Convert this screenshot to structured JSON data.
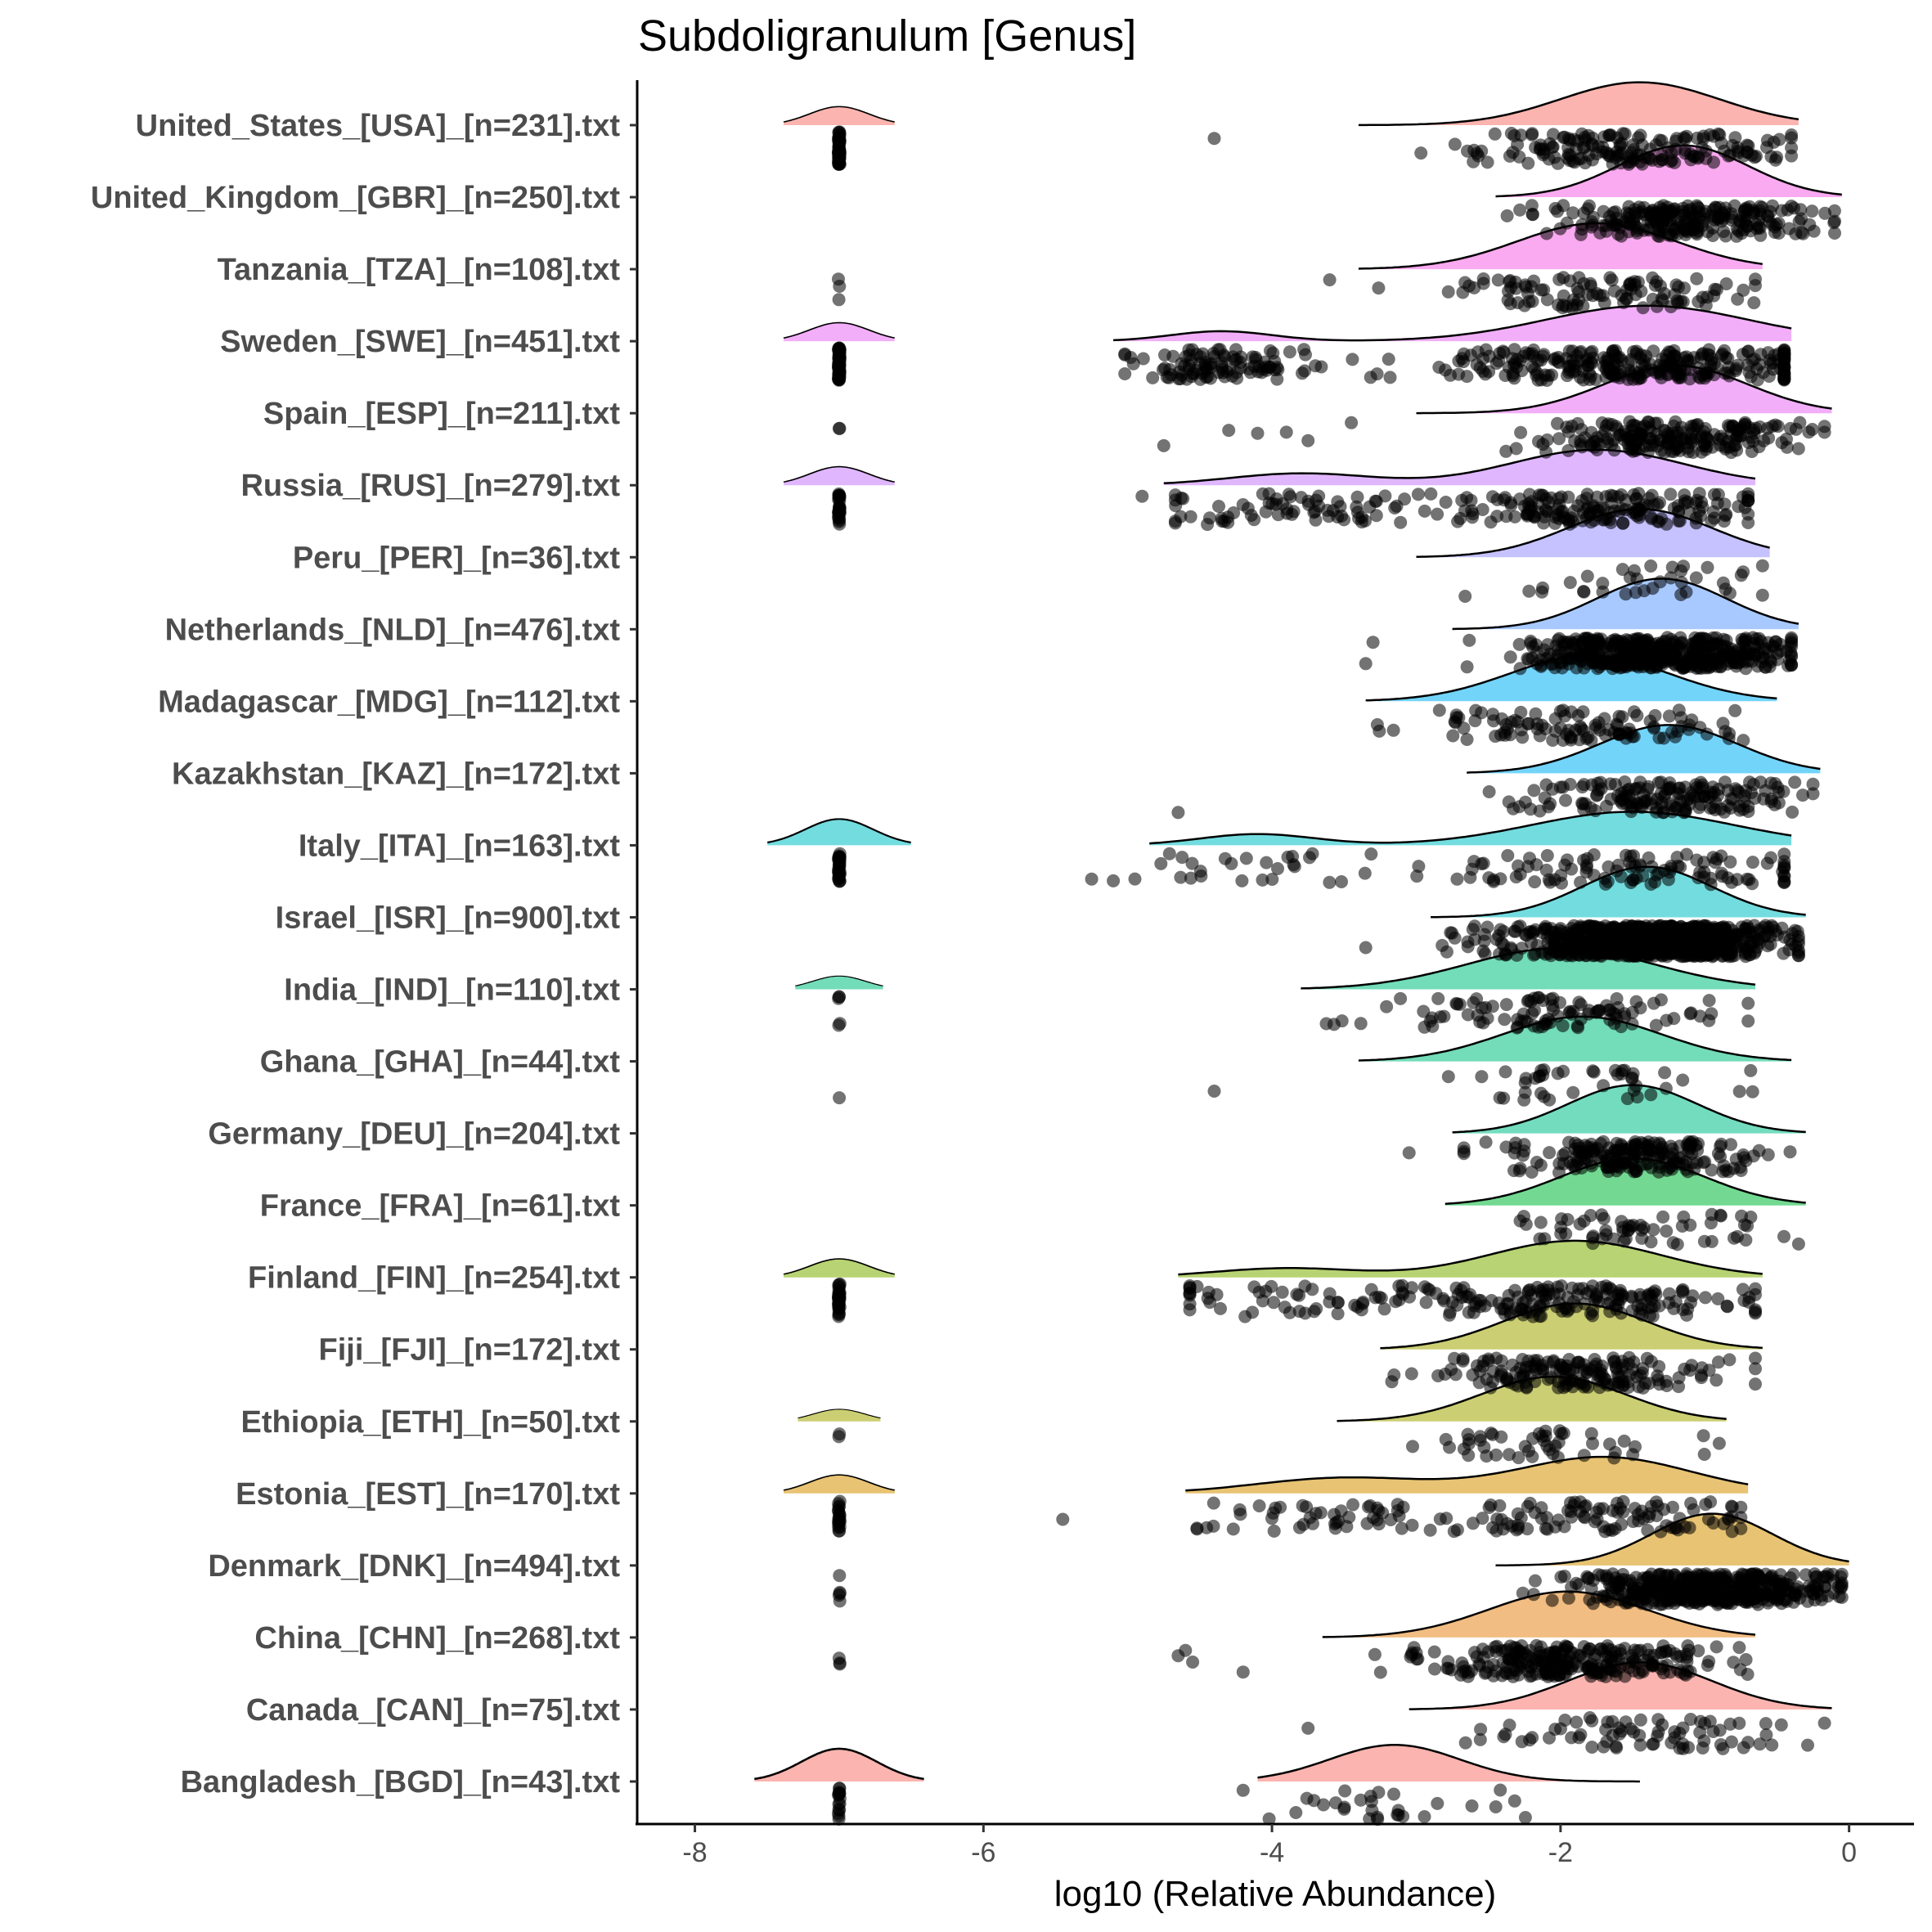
{
  "chart_data": {
    "type": "raincloud",
    "title": "Subdoligranulum [Genus]",
    "xlabel": "log10 (Relative Abundance)",
    "ylabel": "",
    "xlim": [
      -8.4,
      0.45
    ],
    "xticks": [
      -8,
      -6,
      -4,
      -2,
      0
    ],
    "xtick_labels": [
      "-8",
      "-6",
      "-4",
      "-2",
      "0"
    ],
    "grid": false,
    "legend": "none",
    "zero_value": -7,
    "series": [
      {
        "name": "United_States_[USA]_[n=231].txt",
        "color": "#F8766D",
        "n": 231,
        "zero_frac": 0.25,
        "zero_density": 0.3,
        "range": [
          -3.4,
          -0.35
        ],
        "components": [
          {
            "mu": -1.45,
            "sd": 0.55,
            "w": 1.0
          }
        ],
        "outliers": [
          -4.4
        ],
        "peak": 0.62
      },
      {
        "name": "United_Kingdom_[GBR]_[n=250].txt",
        "color": "#F564E3",
        "n": 250,
        "zero_frac": 0.0,
        "zero_density": 0,
        "range": [
          -2.45,
          -0.05
        ],
        "components": [
          {
            "mu": -1.15,
            "sd": 0.45,
            "w": 1.0
          }
        ],
        "outliers": [],
        "peak": 1.0
      },
      {
        "name": "Tanzania_[TZA]_[n=108].txt",
        "color": "#F564E3",
        "n": 108,
        "zero_frac": 0.03,
        "zero_density": 0,
        "range": [
          -3.4,
          -0.6
        ],
        "components": [
          {
            "mu": -1.75,
            "sd": 0.55,
            "w": 1.0
          }
        ],
        "outliers": [
          -3.6
        ],
        "peak": 0.75
      },
      {
        "name": "Sweden_[SWE]_[n=451].txt",
        "color": "#E76BF3",
        "n": 451,
        "zero_frac": 0.12,
        "zero_density": 0.3,
        "range": [
          -5.1,
          -0.4
        ],
        "components": [
          {
            "mu": -4.35,
            "sd": 0.35,
            "w": 0.22
          },
          {
            "mu": -1.4,
            "sd": 0.7,
            "w": 0.78
          }
        ],
        "outliers": [],
        "peak": 0.3
      },
      {
        "name": "Spain_[ESP]_[n=211].txt",
        "color": "#E76BF3",
        "n": 211,
        "zero_frac": 0.01,
        "zero_density": 0,
        "range": [
          -3.0,
          -0.12
        ],
        "components": [
          {
            "mu": -1.2,
            "sd": 0.5,
            "w": 1.0
          }
        ],
        "outliers": [
          -4.75,
          -4.3,
          -4.1,
          -3.9,
          -3.75,
          -3.45
        ],
        "peak": 0.82
      },
      {
        "name": "Russia_[RUS]_[n=279].txt",
        "color": "#C77CFF",
        "n": 279,
        "zero_frac": 0.1,
        "zero_density": 0.3,
        "range": [
          -4.75,
          -0.65
        ],
        "components": [
          {
            "mu": -3.8,
            "sd": 0.5,
            "w": 0.25
          },
          {
            "mu": -1.75,
            "sd": 0.6,
            "w": 0.75
          }
        ],
        "outliers": [
          -4.9
        ],
        "peak": 0.3
      },
      {
        "name": "Peru_[PER]_[n=36].txt",
        "color": "#9590FF",
        "n": 36,
        "zero_frac": 0.0,
        "zero_density": 0,
        "range": [
          -3.0,
          -0.55
        ],
        "components": [
          {
            "mu": -1.45,
            "sd": 0.5,
            "w": 1.0
          }
        ],
        "outliers": [],
        "peak": 0.85
      },
      {
        "name": "Netherlands_[NLD]_[n=476].txt",
        "color": "#619CFF",
        "n": 476,
        "zero_frac": 0.0,
        "zero_density": 0,
        "range": [
          -2.75,
          -0.35
        ],
        "components": [
          {
            "mu": -1.3,
            "sd": 0.45,
            "w": 1.0
          }
        ],
        "outliers": [
          -3.35,
          -3.3
        ],
        "peak": 0.95
      },
      {
        "name": "Madagascar_[MDG]_[n=112].txt",
        "color": "#00B0F6",
        "n": 112,
        "zero_frac": 0.0,
        "zero_density": 0,
        "range": [
          -3.35,
          -0.5
        ],
        "components": [
          {
            "mu": -1.8,
            "sd": 0.55,
            "w": 1.0
          }
        ],
        "outliers": [],
        "peak": 0.75
      },
      {
        "name": "Kazakhstan_[KAZ]_[n=172].txt",
        "color": "#00B0F6",
        "n": 172,
        "zero_frac": 0.0,
        "zero_density": 0,
        "range": [
          -2.65,
          -0.2
        ],
        "components": [
          {
            "mu": -1.25,
            "sd": 0.48,
            "w": 1.0
          }
        ],
        "outliers": [
          -4.65
        ],
        "peak": 0.85
      },
      {
        "name": "Italy_[ITA]_[n=163].txt",
        "color": "#00BFC4",
        "n": 163,
        "zero_frac": 0.18,
        "zero_density": 0.55,
        "range": [
          -4.85,
          -0.4
        ],
        "components": [
          {
            "mu": -4.1,
            "sd": 0.4,
            "w": 0.25
          },
          {
            "mu": -1.5,
            "sd": 0.7,
            "w": 0.75
          }
        ],
        "outliers": [
          -5.25,
          -5.1,
          -4.95
        ],
        "peak": 0.22
      },
      {
        "name": "Israel_[ISR]_[n=900].txt",
        "color": "#00BFC4",
        "n": 900,
        "zero_frac": 0.0,
        "zero_density": 0,
        "range": [
          -2.9,
          -0.3
        ],
        "components": [
          {
            "mu": -1.4,
            "sd": 0.45,
            "w": 1.0
          }
        ],
        "outliers": [
          -3.35
        ],
        "peak": 0.95
      },
      {
        "name": "India_[IND]_[n=110].txt",
        "color": "#00BF7D",
        "n": 110,
        "zero_frac": 0.05,
        "zero_density": 0.12,
        "range": [
          -3.8,
          -0.65
        ],
        "components": [
          {
            "mu": -2.0,
            "sd": 0.65,
            "w": 1.0
          }
        ],
        "outliers": [],
        "peak": 0.55
      },
      {
        "name": "Ghana_[GHA]_[n=44].txt",
        "color": "#00BF7D",
        "n": 44,
        "zero_frac": 0.03,
        "zero_density": 0,
        "range": [
          -3.4,
          -0.4
        ],
        "components": [
          {
            "mu": -1.85,
            "sd": 0.55,
            "w": 1.0
          }
        ],
        "outliers": [
          -4.4
        ],
        "peak": 0.7
      },
      {
        "name": "Germany_[DEU]_[n=204].txt",
        "color": "#00C08B",
        "n": 204,
        "zero_frac": 0.0,
        "zero_density": 0,
        "range": [
          -2.75,
          -0.3
        ],
        "components": [
          {
            "mu": -1.5,
            "sd": 0.45,
            "w": 1.0
          }
        ],
        "outliers": [
          -3.05
        ],
        "peak": 0.85
      },
      {
        "name": "France_[FRA]_[n=61].txt",
        "color": "#00BA38",
        "n": 61,
        "zero_frac": 0.0,
        "zero_density": 0,
        "range": [
          -2.8,
          -0.3
        ],
        "components": [
          {
            "mu": -1.5,
            "sd": 0.5,
            "w": 1.0
          }
        ],
        "outliers": [],
        "peak": 0.8
      },
      {
        "name": "Finland_[FIN]_[n=254].txt",
        "color": "#7CAE00",
        "n": 254,
        "zero_frac": 0.12,
        "zero_density": 0.3,
        "range": [
          -4.65,
          -0.6
        ],
        "components": [
          {
            "mu": -3.9,
            "sd": 0.5,
            "w": 0.2
          },
          {
            "mu": -1.9,
            "sd": 0.6,
            "w": 0.8
          }
        ],
        "outliers": [],
        "peak": 0.35
      },
      {
        "name": "Fiji_[FJI]_[n=172].txt",
        "color": "#A3A500",
        "n": 172,
        "zero_frac": 0.0,
        "zero_density": 0,
        "range": [
          -3.25,
          -0.6
        ],
        "components": [
          {
            "mu": -1.9,
            "sd": 0.5,
            "w": 1.0
          }
        ],
        "outliers": [],
        "peak": 0.75
      },
      {
        "name": "Ethiopia_[ETH]_[n=50].txt",
        "color": "#A3A500",
        "n": 50,
        "zero_frac": 0.04,
        "zero_density": 0.08,
        "range": [
          -3.55,
          -0.85
        ],
        "components": [
          {
            "mu": -2.05,
            "sd": 0.5,
            "w": 1.0
          }
        ],
        "outliers": [],
        "peak": 0.7
      },
      {
        "name": "Estonia_[EST]_[n=170].txt",
        "color": "#D39200",
        "n": 170,
        "zero_frac": 0.12,
        "zero_density": 0.3,
        "range": [
          -4.6,
          -0.7
        ],
        "components": [
          {
            "mu": -3.5,
            "sd": 0.6,
            "w": 0.3
          },
          {
            "mu": -1.7,
            "sd": 0.6,
            "w": 0.7
          }
        ],
        "outliers": [
          -5.45
        ],
        "peak": 0.35
      },
      {
        "name": "Denmark_[DNK]_[n=494].txt",
        "color": "#D39200",
        "n": 494,
        "zero_frac": 0.01,
        "zero_density": 0,
        "range": [
          -2.45,
          0.0
        ],
        "components": [
          {
            "mu": -0.95,
            "sd": 0.42,
            "w": 1.0
          }
        ],
        "outliers": [],
        "peak": 1.0
      },
      {
        "name": "China_[CHN]_[n=268].txt",
        "color": "#E7861B",
        "n": 268,
        "zero_frac": 0.01,
        "zero_density": 0,
        "range": [
          -3.65,
          -0.65
        ],
        "components": [
          {
            "mu": -1.95,
            "sd": 0.55,
            "w": 1.0
          }
        ],
        "outliers": [
          -4.65,
          -4.6,
          -4.55,
          -4.2
        ],
        "peak": 0.75
      },
      {
        "name": "Canada_[CAN]_[n=75].txt",
        "color": "#F8766D",
        "n": 75,
        "zero_frac": 0.0,
        "zero_density": 0,
        "range": [
          -3.05,
          -0.12
        ],
        "components": [
          {
            "mu": -1.45,
            "sd": 0.5,
            "w": 1.0
          }
        ],
        "outliers": [
          -3.75
        ],
        "peak": 0.8
      },
      {
        "name": "Bangladesh_[BGD]_[n=43].txt",
        "color": "#F8766D",
        "n": 43,
        "zero_frac": 0.35,
        "zero_density": 0.75,
        "range": [
          -4.1,
          -1.45
        ],
        "components": [
          {
            "mu": -3.15,
            "sd": 0.45,
            "w": 1.0
          }
        ],
        "outliers": [
          -4.2,
          -3.5
        ],
        "peak": 0.35
      }
    ]
  }
}
